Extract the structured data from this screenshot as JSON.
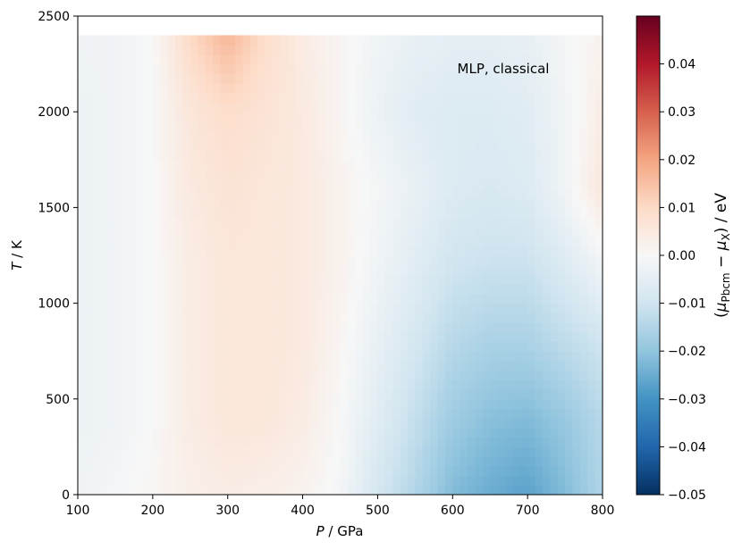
{
  "chart_data": {
    "type": "heatmap",
    "title": "",
    "annotation": "MLP, classical",
    "xlabel": {
      "symbol": "P",
      "unit": " / GPa"
    },
    "ylabel": {
      "symbol": "T",
      "unit": " / K"
    },
    "colorbar_label": {
      "open": "(",
      "mu": "μ",
      "sub1": "Pbcm",
      "minus": " − ",
      "sub2": "X",
      "close": ") / eV"
    },
    "xlim": [
      100,
      800
    ],
    "ylim": [
      0,
      2500
    ],
    "data_ymax": 2400,
    "x_ticks": [
      100,
      200,
      300,
      400,
      500,
      600,
      700,
      800
    ],
    "y_ticks": [
      0,
      500,
      1000,
      1500,
      2000,
      2500
    ],
    "colorbar": {
      "colormap": "RdBu_r",
      "vmin": -0.05,
      "vmax": 0.05,
      "ticks": [
        -0.05,
        -0.04,
        -0.03,
        -0.02,
        -0.01,
        0.0,
        0.01,
        0.02,
        0.03,
        0.04
      ],
      "tick_labels": [
        "−0.05",
        "−0.04",
        "−0.03",
        "−0.02",
        "−0.01",
        "0.00",
        "0.01",
        "0.02",
        "0.03",
        "0.04"
      ],
      "colors": [
        "#053061",
        "#2166ac",
        "#4393c3",
        "#92c5de",
        "#d1e5f0",
        "#f7f7f7",
        "#fddbc7",
        "#f4a582",
        "#d6604d",
        "#b2182b",
        "#67001f"
      ]
    },
    "grid_T": [
      0,
      400,
      800,
      1200,
      1600,
      2000,
      2400
    ],
    "grid_P": [
      100,
      150,
      200,
      250,
      300,
      350,
      400,
      450,
      500,
      550,
      600,
      650,
      700,
      750,
      800
    ],
    "z": [
      [
        -0.002,
        -0.001,
        0.001,
        0.003,
        0.004,
        0.003,
        0.002,
        -0.001,
        -0.009,
        -0.015,
        -0.022,
        -0.025,
        -0.027,
        -0.022,
        -0.015
      ],
      [
        -0.003,
        -0.002,
        0.0,
        0.004,
        0.006,
        0.006,
        0.004,
        0.0,
        -0.006,
        -0.012,
        -0.018,
        -0.021,
        -0.022,
        -0.019,
        -0.014
      ],
      [
        -0.003,
        -0.002,
        0.0,
        0.004,
        0.006,
        0.006,
        0.005,
        0.001,
        -0.004,
        -0.009,
        -0.014,
        -0.016,
        -0.016,
        -0.013,
        -0.01
      ],
      [
        -0.003,
        -0.002,
        0.0,
        0.004,
        0.006,
        0.006,
        0.005,
        0.002,
        -0.002,
        -0.006,
        -0.01,
        -0.011,
        -0.011,
        -0.007,
        -0.002
      ],
      [
        -0.003,
        -0.002,
        0.0,
        0.005,
        0.007,
        0.006,
        0.005,
        0.002,
        -0.001,
        -0.004,
        -0.007,
        -0.008,
        -0.007,
        -0.002,
        0.006
      ],
      [
        -0.003,
        -0.002,
        0.0,
        0.006,
        0.009,
        0.007,
        0.005,
        0.001,
        -0.003,
        -0.006,
        -0.007,
        -0.007,
        -0.006,
        -0.002,
        0.004
      ],
      [
        -0.002,
        -0.002,
        0.0,
        0.01,
        0.017,
        0.009,
        0.004,
        0.001,
        -0.002,
        -0.004,
        -0.005,
        -0.005,
        -0.004,
        -0.001,
        0.002
      ]
    ]
  }
}
